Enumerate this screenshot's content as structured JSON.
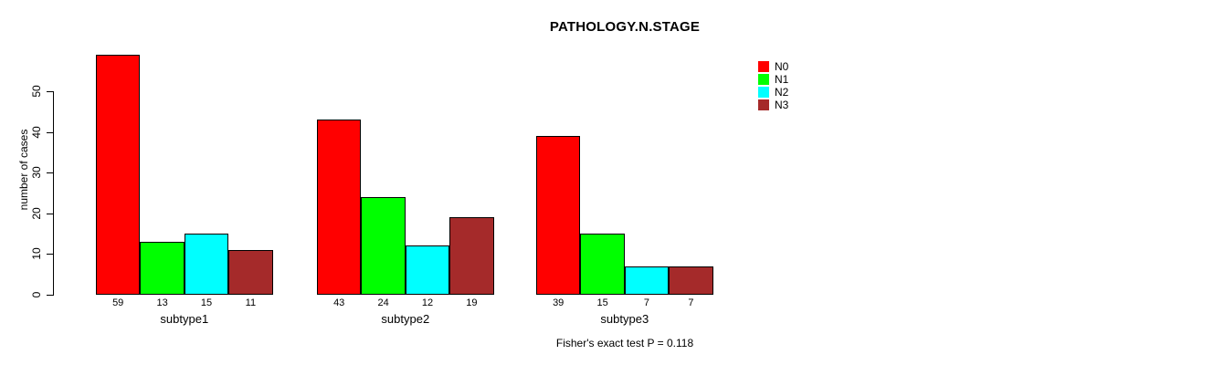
{
  "chart_data": {
    "type": "bar",
    "title": "PATHOLOGY.N.STAGE",
    "ylabel": "number of cases",
    "xlabel": "",
    "categories": [
      "subtype1",
      "subtype2",
      "subtype3"
    ],
    "series": [
      {
        "name": "N0",
        "color": "#FF0000",
        "values": [
          59,
          43,
          39
        ]
      },
      {
        "name": "N1",
        "color": "#00FF00",
        "values": [
          13,
          24,
          15
        ]
      },
      {
        "name": "N2",
        "color": "#00FFFF",
        "values": [
          15,
          12,
          7
        ]
      },
      {
        "name": "N3",
        "color": "#A52A2A",
        "values": [
          11,
          19,
          7
        ]
      }
    ],
    "yticks": [
      0,
      10,
      20,
      30,
      40,
      50
    ],
    "ylim": [
      0,
      62
    ],
    "grid": false,
    "legend_position": "top-right",
    "bar_value_labels_shown": true,
    "annotation": "Fisher's exact test P = 0.118"
  },
  "colors": {
    "background": "#FFFFFF",
    "axis": "#000000",
    "bar_border": "#000000",
    "text": "#000000"
  }
}
